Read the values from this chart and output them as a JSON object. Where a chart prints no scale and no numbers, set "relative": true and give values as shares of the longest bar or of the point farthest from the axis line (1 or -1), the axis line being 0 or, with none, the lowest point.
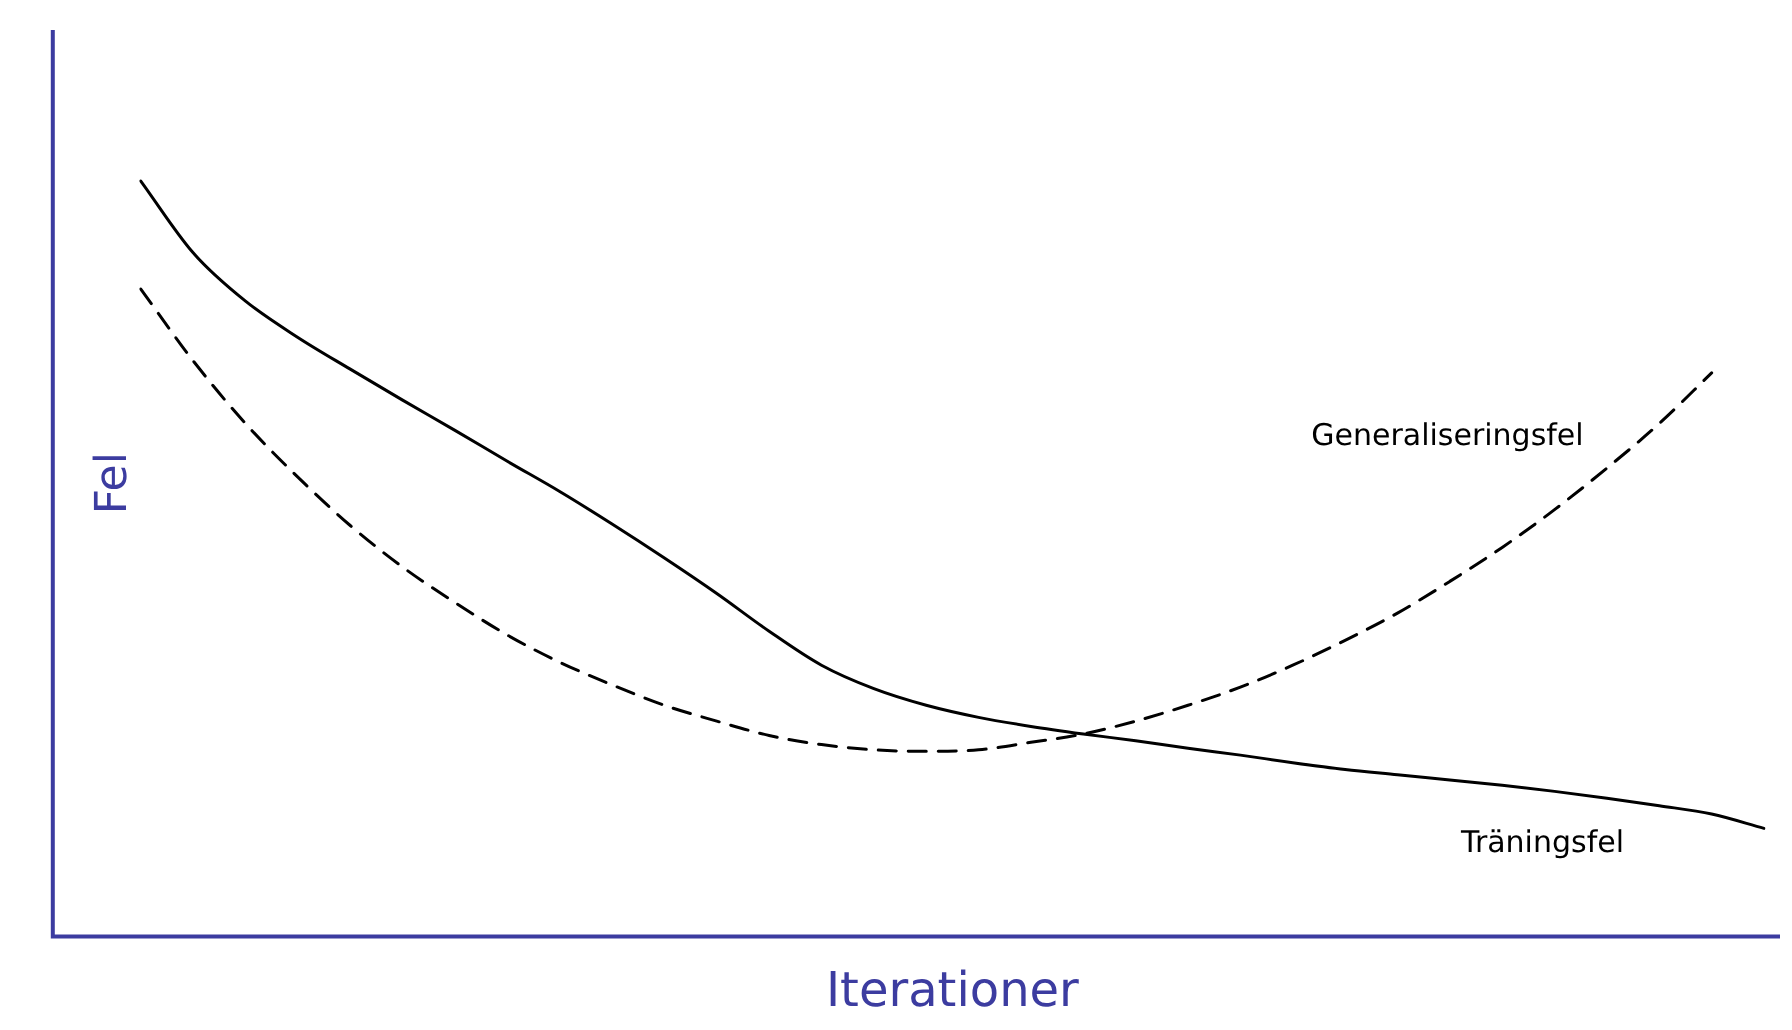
{
  "chart_data": {
    "type": "line",
    "xlabel": "Iterationer",
    "ylabel": "Fel",
    "relative": true,
    "legend": false,
    "grid": false,
    "tick_labels": false,
    "marker": "none",
    "categories": [
      null,
      null,
      null,
      null,
      null,
      null,
      null,
      null,
      null,
      null,
      null,
      null,
      null,
      null,
      null,
      null,
      null,
      null,
      null,
      null,
      null,
      null,
      null,
      null,
      null,
      null,
      null,
      null,
      null,
      null,
      null,
      null
    ],
    "series": [
      {
        "name": "Träningsfel",
        "color": "#000000",
        "line_style": "solid",
        "values": [
          1,
          0.905,
          0.841,
          0.793,
          0.751,
          0.71,
          0.67,
          0.629,
          0.589,
          0.546,
          0.501,
          0.454,
          0.404,
          0.359,
          0.328,
          0.306,
          0.29,
          0.278,
          0.268,
          0.259,
          0.249,
          0.24,
          0.23,
          0.221,
          0.214,
          0.207,
          0.2,
          0.192,
          0.183,
          0.173,
          0.162,
          0.143
        ]
      },
      {
        "name": "Generaliseringsfel",
        "color": "#000000",
        "line_style": "dashed",
        "values": [
          0.857,
          0.762,
          0.679,
          0.608,
          0.544,
          0.489,
          0.442,
          0.399,
          0.363,
          0.333,
          0.306,
          0.285,
          0.266,
          0.254,
          0.247,
          0.245,
          0.247,
          0.257,
          0.268,
          0.285,
          0.306,
          0.33,
          0.359,
          0.392,
          0.428,
          0.47,
          0.515,
          0.565,
          0.62,
          0.679,
          0.746,
          null
        ]
      }
    ]
  }
}
